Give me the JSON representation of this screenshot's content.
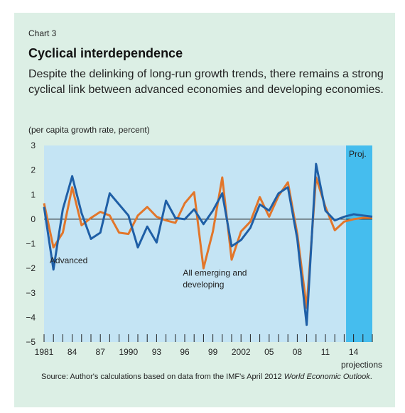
{
  "chart_label": "Chart 3",
  "title": "Cyclical interdependence",
  "subtitle": "Despite the delinking of long-run growth trends, there remains a strong cyclical link between advanced economies and developing economies.",
  "units": "(per capita growth rate, percent)",
  "source_prefix": "Source: Author's calculations based on data from the IMF's April 2012 ",
  "source_italic": "World Economic Outlook",
  "source_suffix": ".",
  "chart_data": {
    "type": "line",
    "ylim": [
      -5,
      3
    ],
    "yticks": [
      3,
      2,
      1,
      0,
      -1,
      -2,
      -3,
      -4,
      -5
    ],
    "xlim": [
      1981,
      2016
    ],
    "xtick_labels": [
      {
        "year": 1981,
        "label": "1981"
      },
      {
        "year": 1984,
        "label": "84"
      },
      {
        "year": 1987,
        "label": "87"
      },
      {
        "year": 1990,
        "label": "1990"
      },
      {
        "year": 1993,
        "label": "93"
      },
      {
        "year": 1996,
        "label": "96"
      },
      {
        "year": 1999,
        "label": "99"
      },
      {
        "year": 2002,
        "label": "2002"
      },
      {
        "year": 2005,
        "label": "05"
      },
      {
        "year": 2008,
        "label": "08"
      },
      {
        "year": 2011,
        "label": "11"
      },
      {
        "year": 2014,
        "label": "14"
      }
    ],
    "projection": {
      "start": 2013.2,
      "end": 2016,
      "label": "Proj.",
      "axis_note": "projections"
    },
    "x": [
      1981,
      1982,
      1983,
      1984,
      1985,
      1986,
      1987,
      1988,
      1989,
      1990,
      1991,
      1992,
      1993,
      1994,
      1995,
      1996,
      1997,
      1998,
      1999,
      2000,
      2001,
      2002,
      2003,
      2004,
      2005,
      2006,
      2007,
      2008,
      2009,
      2010,
      2011,
      2012,
      2013,
      2014,
      2015,
      2016
    ],
    "series": [
      {
        "name": "Advanced",
        "color": "#1f5fa6",
        "values": [
          0.5,
          -2.05,
          0.4,
          1.75,
          0.25,
          -0.8,
          -0.55,
          1.05,
          0.6,
          0.15,
          -1.15,
          -0.3,
          -0.95,
          0.75,
          0.05,
          0.0,
          0.4,
          -0.2,
          0.35,
          1.05,
          -1.1,
          -0.85,
          -0.35,
          0.6,
          0.35,
          1.05,
          1.3,
          -0.8,
          -4.3,
          2.25,
          0.35,
          -0.05,
          0.1,
          0.2,
          0.15,
          0.1
        ]
      },
      {
        "name": "All emerging and developing",
        "color": "#e2762a",
        "values": [
          0.65,
          -1.15,
          -0.55,
          1.3,
          -0.25,
          0.05,
          0.3,
          0.15,
          -0.55,
          -0.6,
          0.15,
          0.5,
          0.1,
          -0.05,
          -0.15,
          0.65,
          1.1,
          -2.0,
          -0.5,
          1.7,
          -1.65,
          -0.5,
          -0.1,
          0.9,
          0.1,
          0.95,
          1.5,
          -0.6,
          -3.6,
          1.7,
          0.5,
          -0.45,
          -0.1,
          0.0,
          0.05,
          0.05
        ]
      }
    ],
    "annotations": [
      {
        "text": "Advanced",
        "series": "Advanced"
      },
      {
        "text": "All emerging and",
        "series": "All emerging and developing"
      },
      {
        "text": "developing",
        "series": "All emerging and developing"
      }
    ]
  }
}
